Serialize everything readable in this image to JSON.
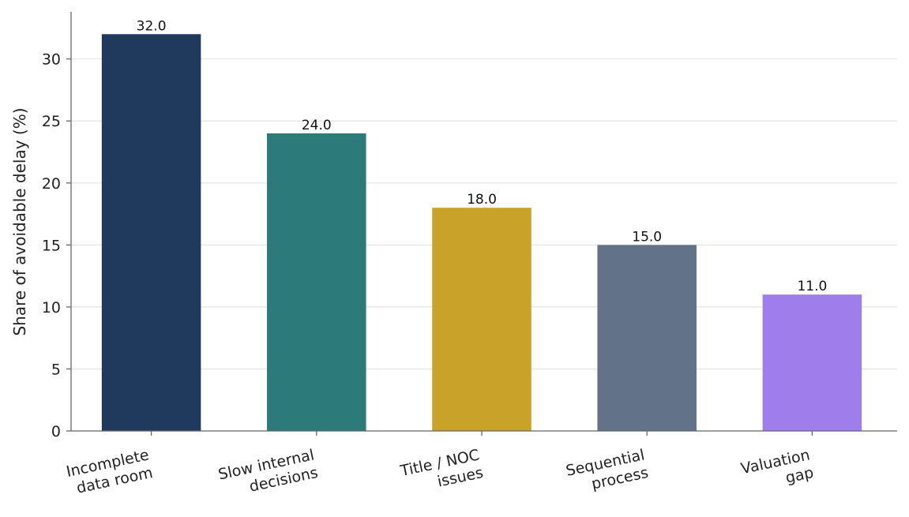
{
  "chart_data": {
    "type": "bar",
    "categories": [
      [
        "Incomplete",
        "data room"
      ],
      [
        "Slow internal",
        "decisions"
      ],
      [
        "Title / NOC",
        "issues"
      ],
      [
        "Sequential",
        "process"
      ],
      [
        "Valuation",
        "gap"
      ]
    ],
    "values": [
      32.0,
      24.0,
      18.0,
      15.0,
      11.0
    ],
    "value_labels": [
      "32.0",
      "24.0",
      "18.0",
      "15.0",
      "11.0"
    ],
    "colors": [
      "#1f3a5c",
      "#2d7a7b",
      "#c9a22a",
      "#627389",
      "#9f7deb"
    ],
    "title": "",
    "xlabel": "",
    "ylabel": "Share of avoidable delay (%)",
    "ylim": [
      0,
      33.8
    ],
    "yticks": [
      0,
      5,
      10,
      15,
      20,
      25,
      30
    ],
    "grid": "horizontal",
    "legend": "none"
  }
}
